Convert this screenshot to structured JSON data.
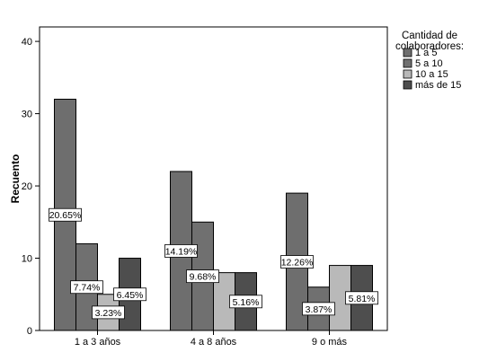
{
  "chart_data": {
    "type": "bar",
    "title": "",
    "xlabel": "",
    "ylabel": "Recuento",
    "ylim": [
      0,
      42
    ],
    "yticks": [
      0,
      10,
      20,
      30,
      40
    ],
    "categories": [
      "1 a 3 años",
      "4 a 8 años",
      "9 o más"
    ],
    "legend": {
      "title_lines": [
        "Cantidad de",
        "colaboradores:"
      ],
      "position": "top-right"
    },
    "series": [
      {
        "name": "1 a 5",
        "color": "#6e6e6e",
        "values": [
          32,
          22,
          19
        ],
        "labels": [
          "20.65%",
          "14.19%",
          "12.26%"
        ]
      },
      {
        "name": "5 a 10",
        "color": "#707070",
        "values": [
          12,
          15,
          6
        ],
        "labels": [
          "7.74%",
          "9.68%",
          "3.87%"
        ]
      },
      {
        "name": "10 a 15",
        "color": "#b9b9b9",
        "values": [
          5,
          8,
          9
        ],
        "labels": [
          "3.23%",
          "",
          ""
        ]
      },
      {
        "name": "más de 15",
        "color": "#4e4e4e",
        "values": [
          10,
          8,
          9
        ],
        "labels": [
          "6.45%",
          "5.16%",
          "5.81%"
        ]
      }
    ]
  }
}
